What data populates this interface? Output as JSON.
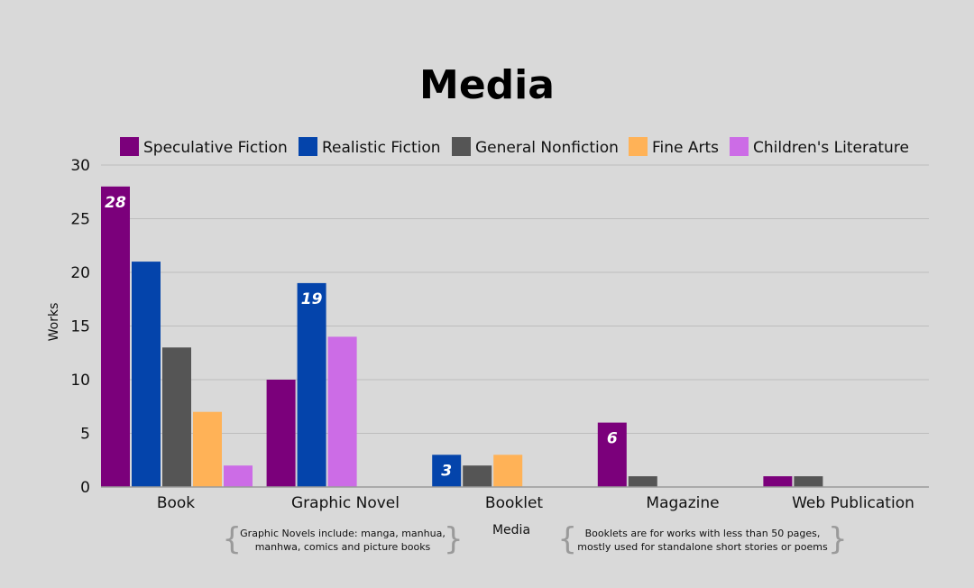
{
  "chart_data": {
    "type": "bar",
    "title": "Media",
    "xlabel": "Media",
    "ylabel": "Works",
    "ylim": [
      0,
      30
    ],
    "yticks": [
      0,
      5,
      10,
      15,
      20,
      25,
      30
    ],
    "grid": true,
    "legend_position": "top",
    "categories": [
      "Book",
      "Graphic Novel",
      "Booklet",
      "Magazine",
      "Web Publication"
    ],
    "series": [
      {
        "name": "Speculative Fiction",
        "color": "#7b007b",
        "values": [
          28,
          10,
          null,
          6,
          1
        ]
      },
      {
        "name": "Realistic Fiction",
        "color": "#0444ab",
        "values": [
          21,
          19,
          3,
          null,
          null
        ]
      },
      {
        "name": "General Nonfiction",
        "color": "#555555",
        "values": [
          13,
          null,
          2,
          1,
          1
        ]
      },
      {
        "name": "Fine Arts",
        "color": "#ffb257",
        "values": [
          7,
          null,
          3,
          null,
          null
        ]
      },
      {
        "name": "Children's Literature",
        "color": "#cc6ce6",
        "values": [
          2,
          14,
          null,
          null,
          null
        ]
      }
    ],
    "data_labels": [
      {
        "category": "Book",
        "series": "Speculative Fiction",
        "text": "28"
      },
      {
        "category": "Graphic Novel",
        "series": "Realistic Fiction",
        "text": "19"
      },
      {
        "category": "Booklet",
        "series": "Realistic Fiction",
        "text": "3"
      },
      {
        "category": "Magazine",
        "series": "Speculative Fiction",
        "text": "6"
      }
    ],
    "annotations": [
      {
        "lines": [
          "Graphic Novels include: manga, manhua,",
          "manhwa, comics and picture books"
        ]
      },
      {
        "lines": [
          "Booklets are for works with less than 50 pages,",
          "mostly used for standalone short stories or poems"
        ]
      }
    ]
  }
}
